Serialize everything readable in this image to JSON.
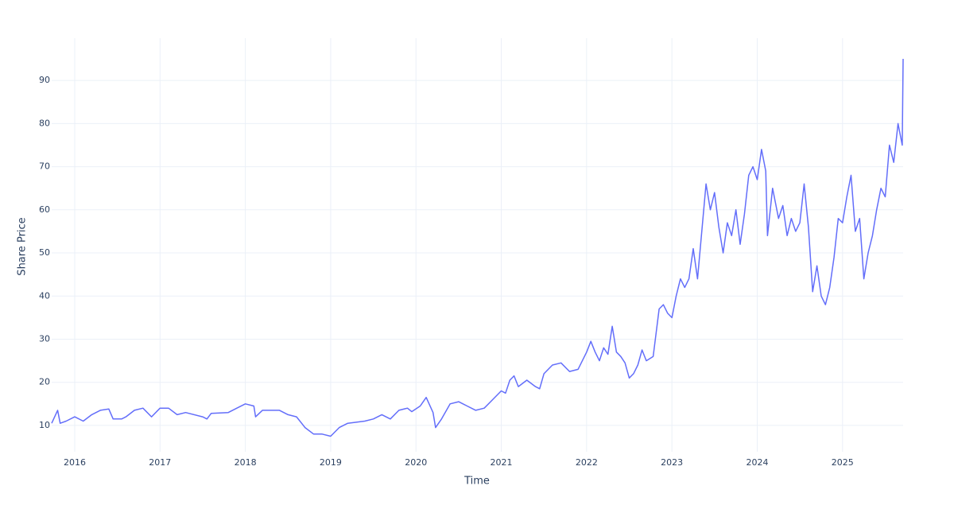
{
  "chart_data": {
    "type": "line",
    "x_label": "Time",
    "y_label": "Share Price",
    "xlim": [
      2015.73,
      2025.71
    ],
    "ylim": [
      3.9,
      99.8
    ],
    "xticks": [
      2016,
      2017,
      2018,
      2019,
      2020,
      2021,
      2022,
      2023,
      2024,
      2025
    ],
    "yticks": [
      10,
      20,
      30,
      40,
      50,
      60,
      70,
      80,
      90
    ],
    "grid": true,
    "series": [
      {
        "color": "#636efa",
        "x": [
          2015.73,
          2015.8,
          2015.83,
          2015.9,
          2016.0,
          2016.1,
          2016.2,
          2016.3,
          2016.4,
          2016.45,
          2016.55,
          2016.6,
          2016.7,
          2016.8,
          2016.9,
          2017.0,
          2017.1,
          2017.2,
          2017.3,
          2017.5,
          2017.55,
          2017.6,
          2017.8,
          2017.9,
          2018.0,
          2018.1,
          2018.12,
          2018.2,
          2018.3,
          2018.4,
          2018.5,
          2018.6,
          2018.7,
          2018.8,
          2018.9,
          2019.0,
          2019.1,
          2019.2,
          2019.4,
          2019.5,
          2019.6,
          2019.7,
          2019.8,
          2019.9,
          2019.95,
          2020.05,
          2020.12,
          2020.2,
          2020.23,
          2020.3,
          2020.4,
          2020.5,
          2020.6,
          2020.7,
          2020.8,
          2020.9,
          2021.0,
          2021.05,
          2021.1,
          2021.15,
          2021.2,
          2021.3,
          2021.4,
          2021.45,
          2021.5,
          2021.6,
          2021.7,
          2021.8,
          2021.9,
          2022.0,
          2022.05,
          2022.1,
          2022.15,
          2022.2,
          2022.25,
          2022.3,
          2022.35,
          2022.4,
          2022.45,
          2022.5,
          2022.55,
          2022.6,
          2022.65,
          2022.7,
          2022.78,
          2022.85,
          2022.9,
          2022.95,
          2023.0,
          2023.05,
          2023.1,
          2023.15,
          2023.2,
          2023.25,
          2023.3,
          2023.4,
          2023.45,
          2023.5,
          2023.55,
          2023.6,
          2023.65,
          2023.7,
          2023.75,
          2023.8,
          2023.85,
          2023.9,
          2023.95,
          2024.0,
          2024.05,
          2024.1,
          2024.12,
          2024.18,
          2024.25,
          2024.3,
          2024.35,
          2024.4,
          2024.45,
          2024.5,
          2024.55,
          2024.6,
          2024.65,
          2024.7,
          2024.75,
          2024.8,
          2024.85,
          2024.9,
          2024.95,
          2025.0,
          2025.05,
          2025.1,
          2025.15,
          2025.2,
          2025.25,
          2025.3,
          2025.35,
          2025.4,
          2025.45,
          2025.5,
          2025.55,
          2025.6,
          2025.65,
          2025.7,
          2025.71
        ],
        "values": [
          10.5,
          13.5,
          10.5,
          11,
          12,
          11,
          12.5,
          13.5,
          13.8,
          11.5,
          11.5,
          12,
          13.5,
          14,
          12,
          14,
          14,
          12.5,
          13,
          12,
          11.5,
          12.8,
          13,
          14,
          15,
          14.5,
          12,
          13.5,
          13.5,
          13.5,
          12.5,
          12,
          9.5,
          8,
          8,
          7.5,
          9.5,
          10.5,
          11,
          11.5,
          12.5,
          11.5,
          13.5,
          14,
          13.2,
          14.5,
          16.5,
          13,
          9.5,
          11.5,
          15,
          15.5,
          14.5,
          13.5,
          14,
          16,
          18,
          17.5,
          20.5,
          21.5,
          19,
          20.5,
          19,
          18.5,
          22,
          24,
          24.5,
          22.5,
          23,
          27,
          29.5,
          27,
          25,
          28,
          26.5,
          33,
          27,
          26,
          24.5,
          21,
          22,
          24,
          27.5,
          25,
          26,
          37,
          38,
          36,
          35,
          40,
          44,
          42,
          44,
          51,
          44,
          66,
          60,
          64,
          56,
          50,
          57,
          54,
          60,
          52,
          59,
          68,
          70,
          67,
          74,
          69,
          54,
          65,
          58,
          61,
          54,
          58,
          55,
          57,
          66,
          56,
          41,
          47,
          40,
          38,
          42,
          49,
          58,
          57,
          63,
          68,
          55,
          58,
          44,
          50,
          54,
          60,
          65,
          63,
          75,
          71,
          80,
          75,
          95
        ]
      }
    ]
  }
}
